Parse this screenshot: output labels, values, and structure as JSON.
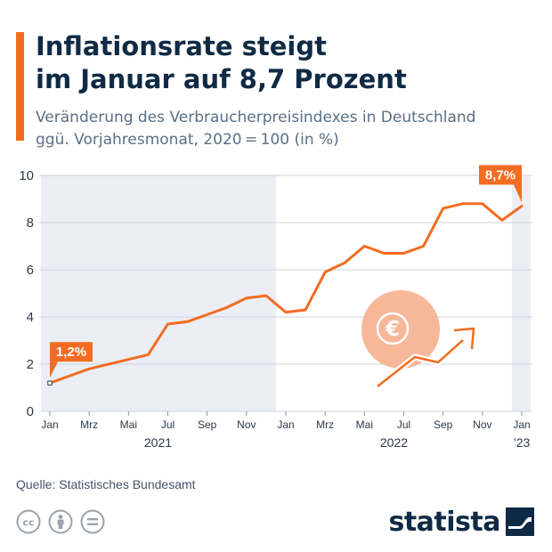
{
  "header": {
    "title_lines": [
      "Inflationsrate steigt",
      "im Januar auf 8,7 Prozent"
    ],
    "subtitle_lines": [
      "Veränderung des Verbraucherpreisindexes in Deutschland",
      "ggü. Vorjahresmonat, 2020 = 100 (in %)"
    ]
  },
  "chart_data": {
    "type": "line",
    "x": [
      "2021-01",
      "2021-02",
      "2021-03",
      "2021-04",
      "2021-05",
      "2021-06",
      "2021-07",
      "2021-08",
      "2021-09",
      "2021-10",
      "2021-11",
      "2021-12",
      "2022-01",
      "2022-02",
      "2022-03",
      "2022-04",
      "2022-05",
      "2022-06",
      "2022-07",
      "2022-08",
      "2022-09",
      "2022-10",
      "2022-11",
      "2022-12",
      "2023-01"
    ],
    "values": [
      1.2,
      1.5,
      1.8,
      2.0,
      2.2,
      2.4,
      3.7,
      3.8,
      4.1,
      4.4,
      4.8,
      4.9,
      4.2,
      4.3,
      5.9,
      6.3,
      7.0,
      6.7,
      6.7,
      7.0,
      8.6,
      8.8,
      8.8,
      8.1,
      8.7
    ],
    "ylim": [
      0,
      10
    ],
    "yticks": [
      "0",
      "2",
      "4",
      "6",
      "8",
      "10"
    ],
    "xtick_labels": [
      "Jan",
      "Mrz",
      "Mai",
      "Jul",
      "Sep",
      "Nov",
      "Jan",
      "Mrz",
      "Mai",
      "Jul",
      "Sep",
      "Nov",
      "Jan"
    ],
    "year_labels": [
      "2021",
      "2022",
      "’23"
    ],
    "annotations": [
      {
        "label": "1,2%",
        "point": "first"
      },
      {
        "label": "8,7%",
        "point": "last"
      }
    ],
    "line_color": "#f36c21",
    "shade_color": "#eceef5",
    "grid": true
  },
  "footer": {
    "source": "Quelle: Statistisches Bundesamt",
    "brand": "statista",
    "icons": [
      "cc-icon",
      "person-icon",
      "equals-icon"
    ]
  },
  "colors": {
    "accent": "#f36c21",
    "title": "#0f2a44",
    "subtitle": "#5a6f84"
  }
}
